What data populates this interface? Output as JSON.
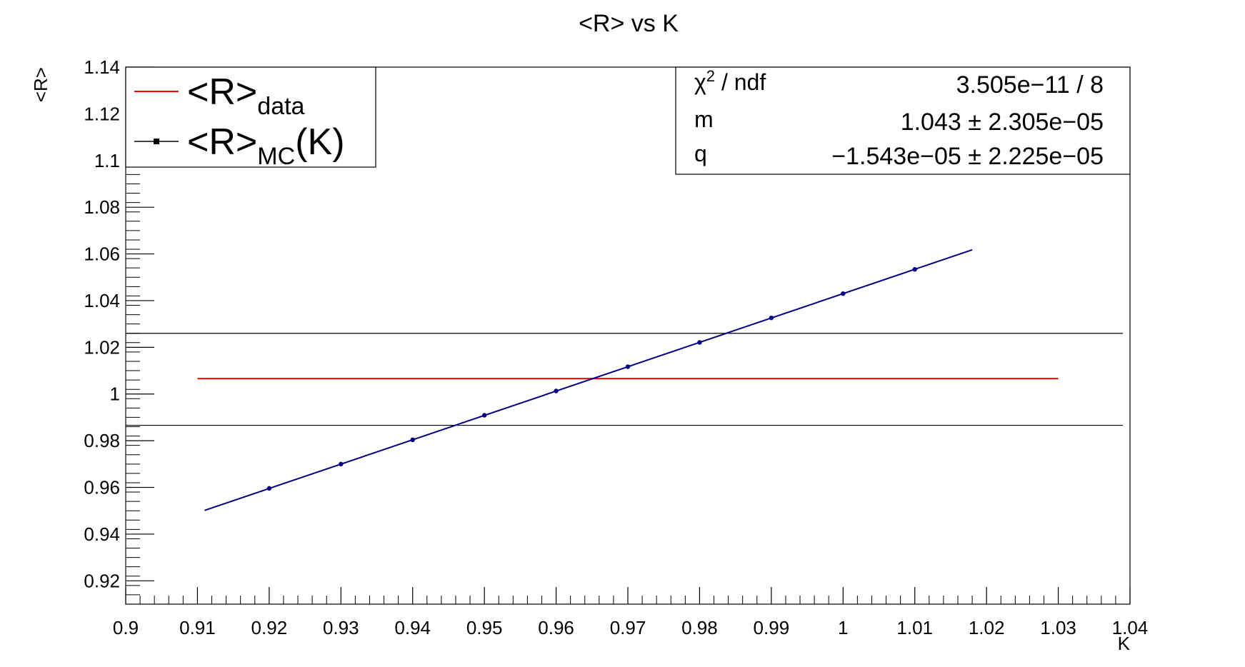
{
  "chart_data": {
    "type": "line",
    "title": "<R> vs K",
    "xlabel": "K",
    "ylabel": "<R>",
    "xlim": [
      0.9,
      1.04
    ],
    "ylim": [
      0.91,
      1.14
    ],
    "x_ticks": [
      "0.9",
      "0.91",
      "0.92",
      "0.93",
      "0.94",
      "0.95",
      "0.96",
      "0.97",
      "0.98",
      "0.99",
      "1",
      "1.01",
      "1.02",
      "1.03",
      "1.04"
    ],
    "y_ticks": [
      "0.92",
      "0.94",
      "0.96",
      "0.98",
      "1",
      "1.02",
      "1.04",
      "1.06",
      "1.08",
      "1.1",
      "1.12",
      "1.14"
    ],
    "grid": false,
    "series": [
      {
        "name": "<R>_MC(K)",
        "color": "#000080",
        "x": [
          0.92,
          0.93,
          0.94,
          0.95,
          0.96,
          0.97,
          0.98,
          0.99,
          1.0,
          1.01
        ],
        "y": [
          0.9596,
          0.97,
          0.9804,
          0.9909,
          1.0013,
          1.0117,
          1.0221,
          1.0326,
          1.043,
          1.0534
        ]
      }
    ],
    "fit_line": {
      "x_start": 0.911,
      "x_end": 1.018,
      "m": 1.043,
      "q": -1.543e-05,
      "color": "#000080"
    },
    "data_band": {
      "name": "<R>_data",
      "central": 1.0066,
      "upper": 1.026,
      "lower": 0.9866,
      "central_x": [
        0.91,
        1.03
      ],
      "band_x": [
        0.9,
        1.039
      ],
      "central_color": "#ff0000",
      "band_color": "#000000"
    },
    "legend": {
      "position": "top-left",
      "entries": [
        {
          "main": "<R>",
          "sub": "data",
          "suffix": "",
          "color": "#ff0000"
        },
        {
          "main": "<R>",
          "sub": "MC",
          "suffix": "(K)",
          "color": "#000000"
        }
      ]
    },
    "stats_box": {
      "position": "top-right",
      "rows": [
        {
          "label": "χ",
          "sup": "2",
          "label_rest": " / ndf",
          "value": "3.505e−11 / 8"
        },
        {
          "label": "m",
          "sup": "",
          "label_rest": "",
          "value": "1.043 ± 2.305e−05"
        },
        {
          "label": "q",
          "sup": "",
          "label_rest": "",
          "value": "−1.543e−05 ± 2.225e−05"
        }
      ]
    }
  }
}
